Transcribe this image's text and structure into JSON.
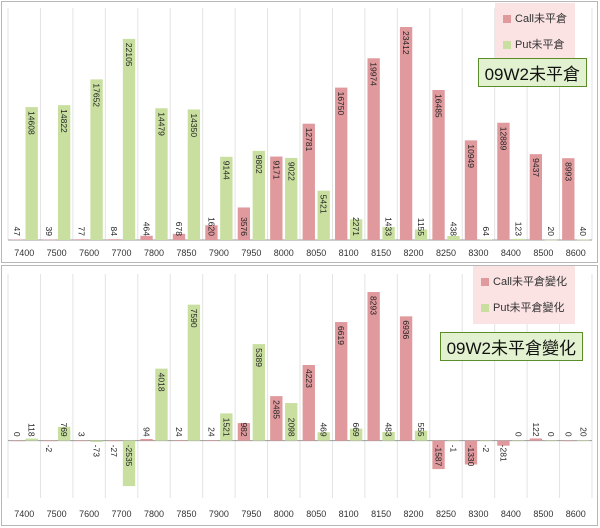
{
  "colors": {
    "call": "#e0999c",
    "put": "#c8df9f",
    "grid": "#e3e3e3",
    "title_bg": "#e2f1cf"
  },
  "chart_data": [
    {
      "type": "bar",
      "title": "09W2未平倉",
      "categories": [
        "7400",
        "7500",
        "7600",
        "7700",
        "7800",
        "7850",
        "7900",
        "7950",
        "8000",
        "8050",
        "8100",
        "8150",
        "8200",
        "8250",
        "8300",
        "8400",
        "8500",
        "8600"
      ],
      "series": [
        {
          "name": "Call未平倉",
          "values": [
            47,
            39,
            77,
            84,
            464,
            678,
            1620,
            3576,
            9171,
            12781,
            16750,
            19974,
            23412,
            16485,
            10949,
            12889,
            9437,
            8993
          ]
        },
        {
          "name": "Put未平倉",
          "values": [
            14608,
            14822,
            17652,
            22105,
            14479,
            14350,
            9144,
            9802,
            9022,
            5421,
            2271,
            1433,
            1155,
            438,
            64,
            123,
            20,
            40
          ]
        }
      ],
      "ylim": [
        0,
        25500
      ],
      "grid": true,
      "legend": "top-right"
    },
    {
      "type": "bar",
      "title": "09W2未平倉變化",
      "categories": [
        "7400",
        "7500",
        "7600",
        "7700",
        "7800",
        "7850",
        "7900",
        "7950",
        "8000",
        "8050",
        "8100",
        "8150",
        "8200",
        "8250",
        "8300",
        "8400",
        "8500",
        "8600"
      ],
      "series": [
        {
          "name": "Call未平倉變化",
          "values": [
            0,
            -2,
            3,
            -27,
            94,
            24,
            24,
            982,
            2485,
            4223,
            6619,
            8293,
            6936,
            -1587,
            -1330,
            -281,
            122,
            0
          ]
        },
        {
          "name": "Put未平倉變化",
          "values": [
            118,
            769,
            -73,
            -2535,
            4018,
            7590,
            1521,
            5389,
            2098,
            469,
            669,
            483,
            555,
            -1,
            -2,
            0,
            0,
            20
          ]
        }
      ],
      "ylim": [
        -3200,
        9300
      ],
      "grid": true,
      "legend": "top-right"
    }
  ]
}
